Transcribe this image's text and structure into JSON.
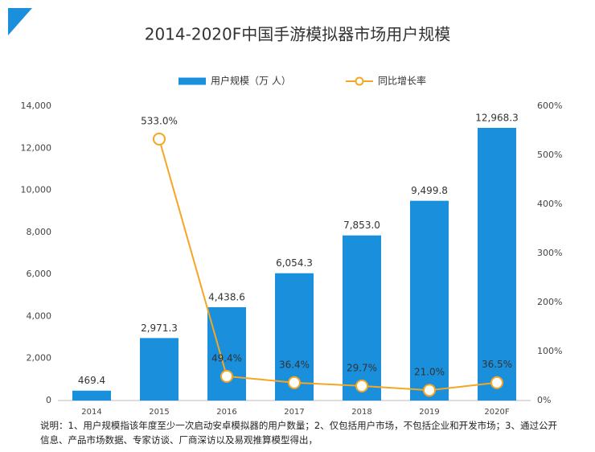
{
  "chart_data": {
    "type": "bar",
    "title": "2014-2020F中国手游模拟器市场用户规模",
    "categories": [
      "2014",
      "2015",
      "2016",
      "2017",
      "2018",
      "2019",
      "2020F"
    ],
    "series": [
      {
        "name": "用户规模（万 人）",
        "type": "bar",
        "color": "#1a8fdc",
        "values": [
          469.4,
          2971.3,
          4438.6,
          6054.3,
          7853.0,
          9499.8,
          12968.3
        ],
        "value_labels": [
          "469.4",
          "2,971.3",
          "4,438.6",
          "6,054.3",
          "7,853.0",
          "9,499.8",
          "12,968.3"
        ]
      },
      {
        "name": "同比增长率",
        "type": "line",
        "axis": "y2",
        "color": "#f5a623",
        "values": [
          null,
          533.0,
          49.4,
          36.4,
          29.7,
          21.0,
          36.5
        ],
        "value_labels": [
          null,
          "533.0%",
          "49.4%",
          "36.4%",
          "29.7%",
          "21.0%",
          "36.5%"
        ]
      }
    ],
    "ylim": [
      0,
      14000
    ],
    "yticks": [
      0,
      {
        "value": 2000,
        "label": "2,000"
      },
      {
        "value": 4000,
        "label": "4,000"
      },
      {
        "value": 6000,
        "label": "6,000"
      },
      {
        "value": 8000,
        "label": "8,000"
      },
      {
        "value": 10000,
        "label": "10,000"
      },
      {
        "value": 12000,
        "label": "12,000"
      },
      {
        "value": 14000,
        "label": "14,000"
      }
    ],
    "y2lim": [
      0,
      600
    ],
    "y2ticks": [
      {
        "value": 0,
        "label": "0%"
      },
      {
        "value": 100,
        "label": "100%"
      },
      {
        "value": 200,
        "label": "200%"
      },
      {
        "value": 300,
        "label": "300%"
      },
      {
        "value": 400,
        "label": "400%"
      },
      {
        "value": 500,
        "label": "500%"
      },
      {
        "value": 600,
        "label": "600%"
      }
    ],
    "note": "说明：1、用户规模指该年度至少一次启动安卓模拟器的用户数量；2、仅包括用户市场，不包括企业和开发市场；3、通过公开信息、产品市场数据、专家访谈、厂商深访以及易观推算模型得出，"
  }
}
